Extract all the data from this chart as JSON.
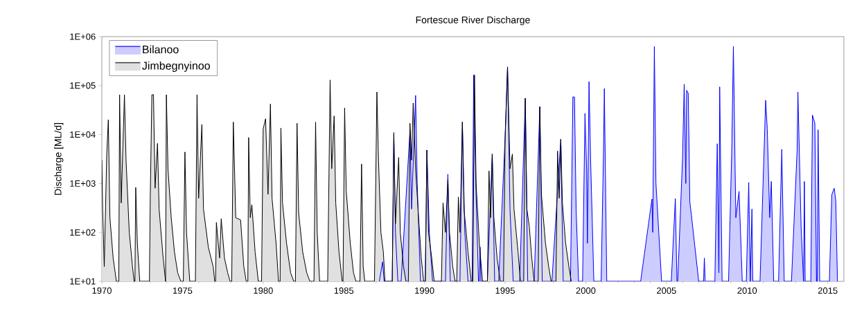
{
  "chart_data": {
    "type": "area",
    "title": "Fortescue River Discharge",
    "ylabel": "Discharge [ML/d]",
    "xlim": [
      1970,
      2016
    ],
    "ylim": [
      10,
      1000000
    ],
    "log": "y",
    "legend": "top left",
    "xticks": [
      1970,
      1975,
      1980,
      1985,
      1990,
      1995,
      2000,
      2005,
      2010,
      2015
    ],
    "yticks": [
      {
        "value": 10,
        "label": "1E+01"
      },
      {
        "value": 100,
        "label": "1E+02"
      },
      {
        "value": 1000,
        "label": "1E+03"
      },
      {
        "value": 10000,
        "label": "1E+04"
      },
      {
        "value": 100000,
        "label": "1E+05"
      },
      {
        "value": 1000000,
        "label": "1E+06"
      }
    ],
    "series": [
      {
        "name": "Bilanoo",
        "color": "#0000ff",
        "x": [
          1987.2,
          1987.4,
          1987.5,
          1988.0,
          1988.1,
          1988.2,
          1988.35,
          1988.55,
          1989.1,
          1989.2,
          1989.45,
          1989.55,
          1989.75,
          1990.05,
          1990.15,
          1990.3,
          1990.5,
          1991.3,
          1991.45,
          1991.6,
          1992.2,
          1992.35,
          1992.5,
          1992.7,
          1992.95,
          1993.05,
          1993.2,
          1993.35,
          1993.4,
          1993.45,
          1993.5,
          1993.9,
          1994.2,
          1994.35,
          1994.6,
          1995.0,
          1995.15,
          1995.3,
          1995.5,
          1995.9,
          1996.25,
          1996.4,
          1996.8,
          1997.15,
          1997.3,
          1997.9,
          1998.45,
          1998.6,
          1999.05,
          1999.2,
          1999.3,
          1999.4,
          1999.55,
          1999.8,
          1999.95,
          2000.05,
          2000.1,
          2000.2,
          2000.3,
          2000.5,
          2000.95,
          2001.1,
          2001.15,
          2001.3,
          2003.4,
          2004.1,
          2004.15,
          2004.25,
          2004.35,
          2004.7,
          2005.3,
          2005.55,
          2005.65,
          2005.7,
          2006.0,
          2006.1,
          2006.2,
          2006.25,
          2006.35,
          2006.45,
          2006.55,
          2007.0,
          2007.3,
          2007.35,
          2007.4,
          2008.0,
          2008.15,
          2008.25,
          2008.3,
          2008.45,
          2008.85,
          2009.05,
          2009.15,
          2009.3,
          2009.5,
          2009.7,
          2009.95,
          2010.1,
          2010.2,
          2010.3,
          2010.35,
          2010.8,
          2011.15,
          2011.25,
          2011.4,
          2011.5,
          2011.65,
          2011.95,
          2012.15,
          2012.3,
          2012.75,
          2013.1,
          2013.15,
          2013.35,
          2013.5,
          2013.55,
          2013.6,
          2013.95,
          2014.05,
          2014.2,
          2014.3,
          2014.35,
          2014.4,
          2014.5,
          2015.1,
          2015.25,
          2015.4,
          2015.5,
          2015.6
        ],
        "values": [
          10,
          25,
          10,
          10,
          10000,
          100,
          10,
          10,
          12000,
          300,
          63000,
          1000,
          10,
          10,
          4800,
          100,
          10,
          10,
          1550,
          10,
          10,
          18000,
          100,
          10,
          10,
          165000,
          500,
          10,
          10,
          50,
          10,
          10,
          4000,
          10,
          10,
          9000,
          240000,
          300,
          10,
          10,
          55000,
          10,
          10,
          37000,
          10,
          10,
          8000,
          10,
          10,
          59000,
          58000,
          300,
          10,
          10,
          27000,
          2000,
          60,
          120000,
          3000,
          10,
          10,
          5000,
          87000,
          10,
          10,
          480,
          100,
          630000,
          1000,
          10,
          10,
          490,
          10,
          10,
          3500,
          107000,
          1000,
          80000,
          70000,
          420,
          220,
          10,
          10,
          30,
          10,
          10,
          6500,
          15,
          94000,
          10,
          10,
          5100,
          630000,
          200,
          690,
          10,
          10,
          1050,
          10,
          300,
          10,
          10,
          50000,
          13000,
          200,
          1100,
          10,
          10,
          5000,
          10,
          10,
          4800,
          74000,
          120,
          10,
          1100,
          10,
          10,
          25000,
          17000,
          10,
          10,
          12500,
          10,
          10,
          590,
          800,
          430,
          10
        ]
      },
      {
        "name": "Jimbegnyinoo",
        "color": "#000000",
        "x": [
          1970.0,
          1970.05,
          1970.15,
          1970.3,
          1970.4,
          1970.5,
          1970.7,
          1970.9,
          1971.05,
          1971.1,
          1971.2,
          1971.4,
          1971.5,
          1971.7,
          1971.9,
          1972.0,
          1972.05,
          1972.1,
          1972.2,
          1972.35,
          1972.95,
          1973.0,
          1973.1,
          1973.2,
          1973.3,
          1973.45,
          1973.55,
          1973.8,
          1973.95,
          1974.0,
          1974.1,
          1974.3,
          1974.5,
          1974.7,
          1974.9,
          1975.05,
          1975.15,
          1975.25,
          1975.45,
          1975.8,
          1975.9,
          1976.0,
          1976.2,
          1976.3,
          1976.6,
          1976.9,
          1977.0,
          1977.05,
          1977.1,
          1977.3,
          1977.4,
          1977.6,
          1977.8,
          1977.95,
          1978.05,
          1978.15,
          1978.3,
          1978.6,
          1978.8,
          1978.95,
          1979.05,
          1979.1,
          1979.2,
          1979.3,
          1979.5,
          1979.7,
          1979.9,
          1980.0,
          1980.15,
          1980.3,
          1980.45,
          1980.55,
          1980.8,
          1980.95,
          1981.05,
          1981.1,
          1981.2,
          1981.45,
          1981.7,
          1981.9,
          1982.0,
          1982.1,
          1982.2,
          1982.45,
          1982.7,
          1982.9,
          1983.15,
          1983.25,
          1983.35,
          1983.5,
          1984.0,
          1984.15,
          1984.25,
          1984.4,
          1984.5,
          1984.7,
          1984.9,
          1984.95,
          1985.05,
          1985.15,
          1985.4,
          1985.6,
          1985.75,
          1986.0,
          1986.1,
          1986.2,
          1986.3,
          1986.9,
          1987.05,
          1987.15,
          1987.3,
          1987.45,
          1987.55,
          1988.0,
          1988.1,
          1988.2,
          1988.4,
          1988.5,
          1988.7,
          1988.85,
          1989.0,
          1989.1,
          1989.2,
          1989.3,
          1989.45,
          1989.6,
          1989.8,
          1989.95,
          1990.05,
          1990.15,
          1990.25,
          1990.45,
          1990.6,
          1991.05,
          1991.15,
          1991.3,
          1991.45,
          1991.55,
          1991.75,
          1991.9,
          1992.0,
          1992.1,
          1992.2,
          1992.35,
          1992.45,
          1992.7,
          1992.9,
          1993.0,
          1993.1,
          1993.2,
          1993.4,
          1993.6,
          1993.9,
          1994.0,
          1994.1,
          1994.2,
          1994.3,
          1994.5,
          1994.7,
          1994.9,
          1995.0,
          1995.15,
          1995.3,
          1995.45,
          1995.55,
          1995.8,
          1995.95,
          1996.15,
          1996.25,
          1996.35,
          1996.5,
          1996.65,
          1996.8,
          1997.05,
          1997.15,
          1997.25,
          1997.5,
          1997.7,
          1997.85,
          1998.15,
          1998.25,
          1998.35,
          1998.45,
          1998.55,
          1998.75,
          1998.95,
          1999.1
        ],
        "values": [
          3000,
          300,
          20,
          3700,
          20000,
          200,
          30,
          10,
          10,
          65000,
          400,
          65000,
          3000,
          100,
          20,
          10,
          10,
          830,
          60,
          10,
          10,
          500,
          65000,
          65000,
          800,
          6600,
          300,
          30,
          10,
          65000,
          2000,
          200,
          40,
          15,
          10,
          10,
          4400,
          100,
          10,
          10,
          65000,
          500,
          16000,
          300,
          50,
          20,
          10,
          10,
          160,
          30,
          190,
          30,
          15,
          10,
          10,
          18000,
          200,
          180,
          20,
          10,
          10,
          8700,
          200,
          370,
          40,
          10,
          10,
          13000,
          21000,
          600,
          42000,
          500,
          60,
          10,
          10,
          13500,
          400,
          60,
          15,
          10,
          10,
          17000,
          250,
          40,
          15,
          10,
          10,
          18000,
          100,
          10,
          10,
          130000,
          2000,
          24000,
          400,
          40,
          10,
          10,
          35000,
          700,
          60,
          15,
          10,
          10,
          2500,
          20,
          10,
          10,
          74000,
          3000,
          100,
          40,
          10,
          10,
          11000,
          150,
          3400,
          100,
          20,
          10,
          10,
          17000,
          3000,
          44000,
          2000,
          300,
          30,
          10,
          10,
          4800,
          100,
          30,
          10,
          10,
          400,
          100,
          1200,
          100,
          20,
          10,
          10,
          530,
          100,
          18000,
          300,
          40,
          10,
          10,
          165000,
          1000,
          60,
          10,
          10,
          1800,
          200,
          4000,
          200,
          30,
          10,
          10,
          8900,
          240000,
          2000,
          4000,
          300,
          40,
          10,
          10,
          55000,
          300,
          130,
          30,
          10,
          10,
          37000,
          600,
          60,
          20,
          10,
          10,
          4600,
          500,
          8000,
          400,
          60,
          20,
          10
        ]
      }
    ]
  }
}
